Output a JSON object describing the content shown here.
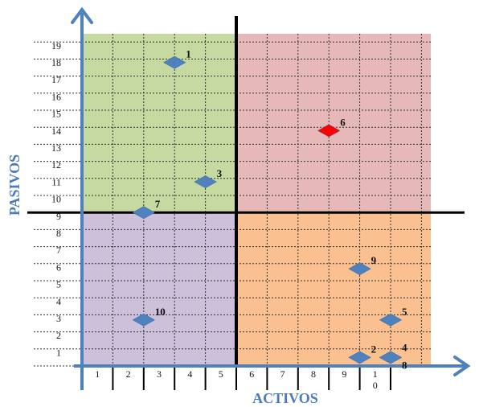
{
  "chart_data": {
    "type": "scatter",
    "xlabel": "ACTIVOS",
    "ylabel": "PASIVOS",
    "x_ticks": [
      "1",
      "2",
      "3",
      "4",
      "5",
      "6",
      "7",
      "8",
      "9",
      "10"
    ],
    "y_ticks": [
      "1",
      "2",
      "3",
      "4",
      "5",
      "6",
      "7",
      "8",
      "9",
      "10",
      "11",
      "12",
      "13",
      "14",
      "15",
      "16",
      "17",
      "18",
      "19"
    ],
    "xlim": [
      0,
      11
    ],
    "ylim": [
      0,
      19.5
    ],
    "divider_x": 5,
    "divider_y": 9.5,
    "grid": true,
    "quadrants": [
      {
        "name": "top-left",
        "color": "#c6d9a0"
      },
      {
        "name": "top-right",
        "color": "#e6b9b8"
      },
      {
        "name": "bottom-left",
        "color": "#ccc0da"
      },
      {
        "name": "bottom-right",
        "color": "#fac090"
      }
    ],
    "points": [
      {
        "label": "1",
        "x": 3.0,
        "y": 18.3,
        "color": "#4f81bd"
      },
      {
        "label": "2",
        "x": 9.0,
        "y": 1.0,
        "color": "#4f81bd"
      },
      {
        "label": "3",
        "x": 4.0,
        "y": 11.3,
        "color": "#4f81bd"
      },
      {
        "label": "4",
        "x": 10.0,
        "y": 1.0,
        "color": "#4f81bd"
      },
      {
        "label": "5",
        "x": 10.0,
        "y": 3.2,
        "color": "#4f81bd"
      },
      {
        "label": "6",
        "x": 8.0,
        "y": 14.3,
        "color": "#ff0000"
      },
      {
        "label": "7",
        "x": 2.0,
        "y": 9.5,
        "color": "#4f81bd"
      },
      {
        "label": "8",
        "x": 10.0,
        "y": 1.0,
        "color": "#4f81bd"
      },
      {
        "label": "9",
        "x": 9.0,
        "y": 6.2,
        "color": "#4f81bd"
      },
      {
        "label": "10",
        "x": 2.0,
        "y": 3.2,
        "color": "#4f81bd"
      }
    ],
    "axis_color": "#4f81bd",
    "divider_color": "#000000"
  }
}
